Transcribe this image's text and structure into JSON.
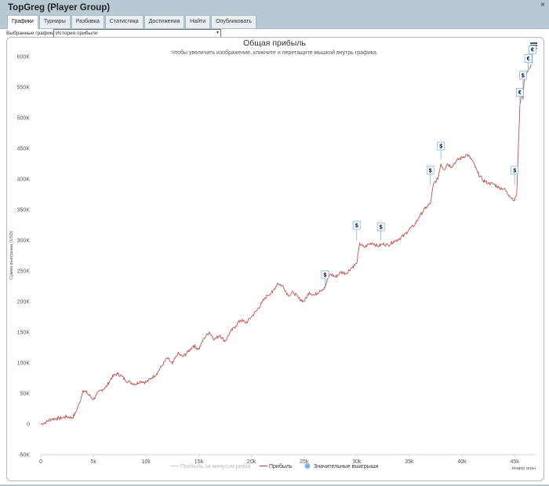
{
  "window": {
    "title": "TopGreg (Player Group)",
    "close_glyph": "×"
  },
  "tabs": [
    {
      "label": "Графики",
      "active": true
    },
    {
      "label": "Турниры",
      "active": false
    },
    {
      "label": "Разбивка",
      "active": false
    },
    {
      "label": "Статистика",
      "active": false
    },
    {
      "label": "Достижения",
      "active": false
    },
    {
      "label": "Найти",
      "active": false
    },
    {
      "label": "Опубликовать",
      "active": false
    }
  ],
  "selector": {
    "label": "Выбранные графики:",
    "value": "История прибыли",
    "icon": "chevron-down-icon"
  },
  "menu_icon": "hamburger-menu-icon",
  "chart_data": {
    "type": "line",
    "title": "Общая прибыль",
    "subtitle": "Чтобы увеличить изображение, кликните и перетащите мышкой внутрь графика.",
    "xlabel": "Номер игры",
    "ylabel": "Сумма выигрыша (USD)",
    "xlim": [
      0,
      47000
    ],
    "ylim": [
      -50000,
      600000
    ],
    "x_ticks": [
      "0",
      "5k",
      "10k",
      "15k",
      "20k",
      "25k",
      "30k",
      "35k",
      "40k",
      "45k"
    ],
    "x_tick_values": [
      0,
      5000,
      10000,
      15000,
      20000,
      25000,
      30000,
      35000,
      40000,
      45000
    ],
    "y_ticks": [
      "-50K",
      "0",
      "50K",
      "100K",
      "150K",
      "200K",
      "250K",
      "300K",
      "350K",
      "400K",
      "450K",
      "500K",
      "550K",
      "600K"
    ],
    "y_tick_values": [
      -50000,
      0,
      50000,
      100000,
      150000,
      200000,
      250000,
      300000,
      350000,
      400000,
      450000,
      500000,
      550000,
      600000
    ],
    "grid": false,
    "legend_position": "bottom-center",
    "legend": [
      {
        "name": "Прибыль за минусом рейка",
        "color": "#cccccc",
        "marker": "line",
        "visible": false
      },
      {
        "name": "Прибыль",
        "color": "#c0504d",
        "marker": "line",
        "visible": true
      },
      {
        "name": "Значительные выигрыши",
        "color": "#7cb5ec",
        "marker": "circle",
        "visible": true
      }
    ],
    "series": [
      {
        "name": "Прибыль",
        "color": "#c0504d",
        "x": [
          0,
          500,
          1000,
          1500,
          2000,
          2500,
          3000,
          3300,
          3700,
          4000,
          4300,
          4700,
          5000,
          5300,
          5700,
          6200,
          6700,
          7000,
          7300,
          7700,
          8000,
          8500,
          9000,
          9500,
          10000,
          10500,
          11000,
          11500,
          12000,
          12500,
          13000,
          13500,
          14000,
          14500,
          15000,
          15500,
          16000,
          16500,
          17000,
          17500,
          18000,
          18500,
          19000,
          19500,
          20000,
          20500,
          21000,
          21500,
          22000,
          22500,
          23000,
          23500,
          24000,
          24500,
          25000,
          25500,
          26000,
          26500,
          27000,
          27200,
          27500,
          28000,
          28500,
          29000,
          29500,
          30000,
          30300,
          30700,
          31000,
          31500,
          32000,
          32500,
          33000,
          33500,
          34000,
          34500,
          35000,
          35500,
          36000,
          36500,
          37000,
          37300,
          37700,
          38000,
          38300,
          38600,
          39000,
          39500,
          40000,
          40500,
          41000,
          41500,
          42000,
          42500,
          43000,
          43500,
          44000,
          44500,
          45000,
          45200,
          45500,
          45700,
          45800,
          45900,
          46000,
          46200,
          46400,
          46600
        ],
        "values": [
          0,
          3000,
          8000,
          9000,
          10000,
          12000,
          10000,
          18000,
          35000,
          55000,
          52000,
          45000,
          40000,
          48000,
          55000,
          60000,
          75000,
          80000,
          82000,
          78000,
          72000,
          68000,
          65000,
          70000,
          68000,
          75000,
          82000,
          95000,
          108000,
          98000,
          115000,
          110000,
          118000,
          128000,
          122000,
          140000,
          150000,
          138000,
          145000,
          135000,
          150000,
          160000,
          170000,
          165000,
          175000,
          185000,
          198000,
          210000,
          215000,
          230000,
          225000,
          210000,
          215000,
          205000,
          200000,
          215000,
          210000,
          218000,
          222000,
          235000,
          245000,
          240000,
          248000,
          246000,
          255000,
          262000,
          295000,
          288000,
          292000,
          296000,
          290000,
          294000,
          292000,
          298000,
          302000,
          308000,
          318000,
          325000,
          340000,
          352000,
          360000,
          392000,
          400000,
          425000,
          415000,
          425000,
          420000,
          430000,
          435000,
          440000,
          430000,
          410000,
          398000,
          393000,
          392000,
          386000,
          384000,
          373000,
          365000,
          376000,
          520000,
          545000,
          530000,
          560000,
          570000,
          575000,
          580000,
          585000
        ]
      }
    ],
    "flags": [
      {
        "label": "$",
        "x": 27000,
        "y": 222000
      },
      {
        "label": "$",
        "x": 30000,
        "y": 300000
      },
      {
        "label": "$",
        "x": 32300,
        "y": 300000
      },
      {
        "label": "$",
        "x": 37000,
        "y": 390000
      },
      {
        "label": "$",
        "x": 38000,
        "y": 432000
      },
      {
        "label": "$",
        "x": 45000,
        "y": 390000
      },
      {
        "label": "€",
        "x": 45500,
        "y": 520000
      },
      {
        "label": "$",
        "x": 45800,
        "y": 545000
      },
      {
        "label": "€",
        "x": 46300,
        "y": 575000
      },
      {
        "label": "€",
        "x": 46700,
        "y": 587000
      }
    ]
  }
}
